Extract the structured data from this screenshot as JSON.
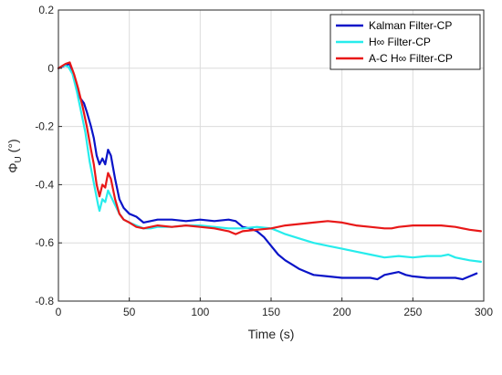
{
  "chart_data": {
    "type": "line",
    "title": "",
    "xlabel": "Time (s)",
    "ylabel": "Φ_U (°)",
    "ylabel_main": "Φ",
    "ylabel_sub": "U",
    "ylabel_unit": " (°)",
    "xlim": [
      0,
      300
    ],
    "ylim": [
      -0.8,
      0.2
    ],
    "xticks": [
      0,
      50,
      100,
      150,
      200,
      250,
      300
    ],
    "yticks": [
      0.2,
      0,
      -0.2,
      -0.4,
      -0.6,
      -0.8
    ],
    "xtick_labels": [
      "0",
      "50",
      "100",
      "150",
      "200",
      "250",
      "300"
    ],
    "ytick_labels": [
      "0.2",
      "0",
      "-0.2",
      "-0.4",
      "-0.6",
      "-0.8"
    ],
    "grid": true,
    "legend_position": "top-right",
    "series": [
      {
        "name": "Kalman Filter-CP",
        "color": "#0a14c8",
        "points": [
          [
            0,
            0.0
          ],
          [
            5,
            0.01
          ],
          [
            8,
            0.015
          ],
          [
            12,
            -0.04
          ],
          [
            15,
            -0.1
          ],
          [
            18,
            -0.12
          ],
          [
            20,
            -0.15
          ],
          [
            23,
            -0.2
          ],
          [
            25,
            -0.24
          ],
          [
            27,
            -0.3
          ],
          [
            29,
            -0.33
          ],
          [
            31,
            -0.31
          ],
          [
            33,
            -0.33
          ],
          [
            35,
            -0.28
          ],
          [
            37,
            -0.3
          ],
          [
            40,
            -0.38
          ],
          [
            43,
            -0.45
          ],
          [
            46,
            -0.48
          ],
          [
            50,
            -0.5
          ],
          [
            55,
            -0.51
          ],
          [
            60,
            -0.53
          ],
          [
            65,
            -0.525
          ],
          [
            70,
            -0.52
          ],
          [
            80,
            -0.52
          ],
          [
            90,
            -0.525
          ],
          [
            100,
            -0.52
          ],
          [
            110,
            -0.525
          ],
          [
            120,
            -0.52
          ],
          [
            125,
            -0.525
          ],
          [
            130,
            -0.545
          ],
          [
            135,
            -0.55
          ],
          [
            140,
            -0.56
          ],
          [
            145,
            -0.58
          ],
          [
            150,
            -0.61
          ],
          [
            155,
            -0.64
          ],
          [
            160,
            -0.66
          ],
          [
            165,
            -0.675
          ],
          [
            170,
            -0.69
          ],
          [
            175,
            -0.7
          ],
          [
            180,
            -0.71
          ],
          [
            190,
            -0.715
          ],
          [
            200,
            -0.72
          ],
          [
            210,
            -0.72
          ],
          [
            220,
            -0.72
          ],
          [
            225,
            -0.725
          ],
          [
            230,
            -0.71
          ],
          [
            235,
            -0.705
          ],
          [
            240,
            -0.7
          ],
          [
            245,
            -0.71
          ],
          [
            250,
            -0.715
          ],
          [
            260,
            -0.72
          ],
          [
            270,
            -0.72
          ],
          [
            280,
            -0.72
          ],
          [
            285,
            -0.725
          ],
          [
            290,
            -0.715
          ],
          [
            295,
            -0.705
          ]
        ]
      },
      {
        "name": "H∞ Filter-CP",
        "color": "#27ecec",
        "points": [
          [
            0,
            0.0
          ],
          [
            4,
            0.01
          ],
          [
            7,
            0.005
          ],
          [
            10,
            -0.02
          ],
          [
            13,
            -0.08
          ],
          [
            16,
            -0.15
          ],
          [
            19,
            -0.22
          ],
          [
            22,
            -0.32
          ],
          [
            24,
            -0.37
          ],
          [
            26,
            -0.42
          ],
          [
            28,
            -0.47
          ],
          [
            29,
            -0.49
          ],
          [
            31,
            -0.45
          ],
          [
            33,
            -0.46
          ],
          [
            35,
            -0.42
          ],
          [
            37,
            -0.44
          ],
          [
            40,
            -0.47
          ],
          [
            43,
            -0.5
          ],
          [
            46,
            -0.52
          ],
          [
            50,
            -0.53
          ],
          [
            55,
            -0.54
          ],
          [
            60,
            -0.55
          ],
          [
            65,
            -0.55
          ],
          [
            70,
            -0.545
          ],
          [
            80,
            -0.545
          ],
          [
            90,
            -0.54
          ],
          [
            100,
            -0.54
          ],
          [
            110,
            -0.545
          ],
          [
            120,
            -0.55
          ],
          [
            130,
            -0.55
          ],
          [
            140,
            -0.545
          ],
          [
            150,
            -0.55
          ],
          [
            155,
            -0.56
          ],
          [
            160,
            -0.57
          ],
          [
            170,
            -0.585
          ],
          [
            180,
            -0.6
          ],
          [
            190,
            -0.61
          ],
          [
            200,
            -0.62
          ],
          [
            210,
            -0.63
          ],
          [
            220,
            -0.64
          ],
          [
            230,
            -0.65
          ],
          [
            240,
            -0.645
          ],
          [
            250,
            -0.65
          ],
          [
            260,
            -0.645
          ],
          [
            270,
            -0.645
          ],
          [
            275,
            -0.64
          ],
          [
            280,
            -0.65
          ],
          [
            290,
            -0.66
          ],
          [
            298,
            -0.665
          ]
        ]
      },
      {
        "name": "A-C H∞ Filter-CP",
        "color": "#e81818",
        "points": [
          [
            0,
            0.0
          ],
          [
            5,
            0.015
          ],
          [
            8,
            0.02
          ],
          [
            11,
            -0.02
          ],
          [
            14,
            -0.07
          ],
          [
            17,
            -0.13
          ],
          [
            20,
            -0.2
          ],
          [
            23,
            -0.28
          ],
          [
            25,
            -0.33
          ],
          [
            27,
            -0.4
          ],
          [
            29,
            -0.44
          ],
          [
            31,
            -0.4
          ],
          [
            33,
            -0.41
          ],
          [
            35,
            -0.36
          ],
          [
            37,
            -0.38
          ],
          [
            40,
            -0.45
          ],
          [
            43,
            -0.5
          ],
          [
            46,
            -0.52
          ],
          [
            50,
            -0.53
          ],
          [
            55,
            -0.545
          ],
          [
            60,
            -0.55
          ],
          [
            65,
            -0.545
          ],
          [
            70,
            -0.54
          ],
          [
            80,
            -0.545
          ],
          [
            90,
            -0.54
          ],
          [
            100,
            -0.545
          ],
          [
            110,
            -0.55
          ],
          [
            120,
            -0.56
          ],
          [
            125,
            -0.57
          ],
          [
            130,
            -0.56
          ],
          [
            140,
            -0.555
          ],
          [
            150,
            -0.55
          ],
          [
            160,
            -0.54
          ],
          [
            170,
            -0.535
          ],
          [
            180,
            -0.53
          ],
          [
            190,
            -0.525
          ],
          [
            200,
            -0.53
          ],
          [
            210,
            -0.54
          ],
          [
            220,
            -0.545
          ],
          [
            230,
            -0.55
          ],
          [
            235,
            -0.55
          ],
          [
            240,
            -0.545
          ],
          [
            250,
            -0.54
          ],
          [
            260,
            -0.54
          ],
          [
            270,
            -0.54
          ],
          [
            280,
            -0.545
          ],
          [
            290,
            -0.555
          ],
          [
            298,
            -0.56
          ]
        ]
      }
    ]
  }
}
